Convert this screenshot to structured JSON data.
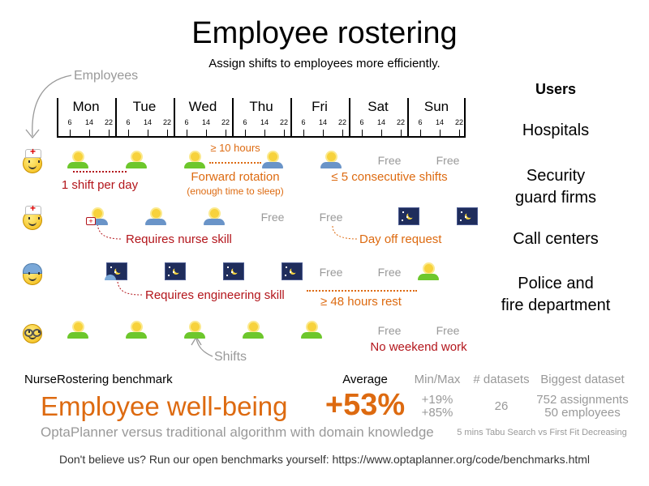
{
  "title": "Employee rostering",
  "subtitle": "Assign shifts to employees more efficiently.",
  "employees_label": "Employees",
  "shifts_label": "Shifts",
  "days": [
    "Mon",
    "Tue",
    "Wed",
    "Thu",
    "Fri",
    "Sat",
    "Sun"
  ],
  "hours": [
    "6",
    "14",
    "22"
  ],
  "free_label": "Free",
  "rows": [
    {
      "employee": "nurse",
      "shifts": [
        "early",
        "early",
        "early",
        "late",
        "late",
        "free",
        "free"
      ]
    },
    {
      "employee": "nurse",
      "shifts": [
        "late",
        "late",
        "late",
        "free",
        "free",
        "night",
        "night"
      ]
    },
    {
      "employee": "engineer",
      "shifts": [
        "night",
        "night",
        "night",
        "night",
        "free",
        "free",
        "early"
      ]
    },
    {
      "employee": "glasses",
      "shifts": [
        "early",
        "early",
        "early",
        "early",
        "early",
        "free",
        "free"
      ]
    }
  ],
  "annotations": {
    "one_shift": "1 shift per day",
    "ten_hours": "≥ 10 hours",
    "forward_rotation": "Forward rotation",
    "sleep": "(enough time to sleep)",
    "consecutive": "≤ 5 consecutive shifts",
    "nurse_skill": "Requires nurse skill",
    "day_off": "Day off request",
    "engineering_skill": "Requires engineering skill",
    "rest": "≥ 48 hours rest",
    "no_weekend": "No weekend work"
  },
  "users": {
    "heading": "Users",
    "items": [
      "Hospitals",
      "Security\nguard firms",
      "Call centers",
      "Police and\nfire department"
    ]
  },
  "benchmark": {
    "name": "NurseRostering benchmark",
    "headline": "Employee well-being",
    "comparison": "OptaPlanner versus traditional algorithm with domain knowledge",
    "average_label": "Average",
    "average": "+53%",
    "minmax_label": "Min/Max",
    "min": "+19%",
    "max": "+85%",
    "datasets_label": "# datasets",
    "datasets": "26",
    "biggest_label": "Biggest dataset",
    "biggest_1": "752 assignments",
    "biggest_2": "50 employees",
    "method": "5 mins Tabu Search vs First Fit Decreasing"
  },
  "footer": "Don't believe us? Run our open benchmarks yourself: https://www.optaplanner.org/code/benchmarks.html",
  "colors": {
    "red": "#b3151b",
    "orange": "#dd6a10",
    "gray": "#999999"
  }
}
